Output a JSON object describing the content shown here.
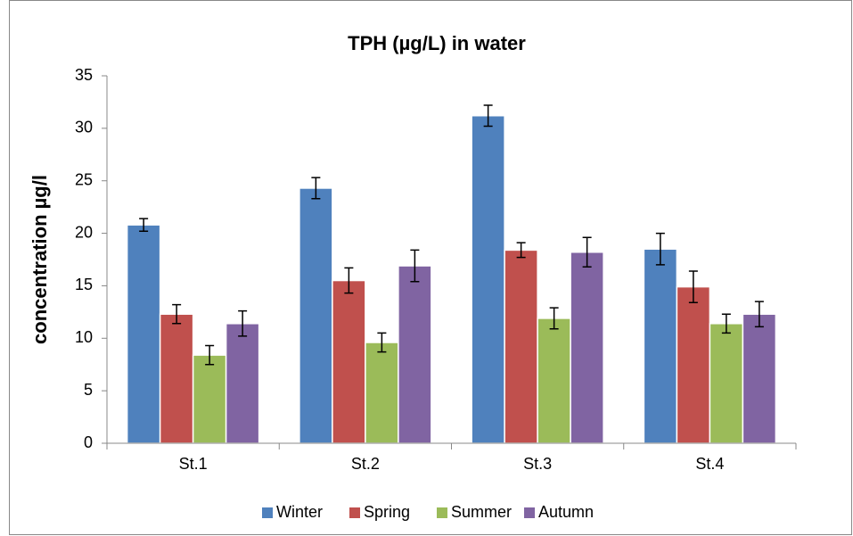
{
  "chart_data": {
    "type": "bar",
    "title": "TPH (µg/L) in water",
    "y_label": "concentration µg/l",
    "categories": [
      "St.1",
      "St.2",
      "St.3",
      "St.4"
    ],
    "series": [
      {
        "name": "Winter",
        "color": "#4f81bd",
        "values": [
          20.8,
          24.3,
          31.2,
          18.5
        ],
        "errors": [
          0.6,
          1.0,
          1.0,
          1.5
        ]
      },
      {
        "name": "Spring",
        "color": "#c0504d",
        "values": [
          12.3,
          15.5,
          18.4,
          14.9
        ],
        "errors": [
          0.9,
          1.2,
          0.7,
          1.5
        ]
      },
      {
        "name": "Summer",
        "color": "#9bbb59",
        "values": [
          8.4,
          9.6,
          11.9,
          11.4
        ],
        "errors": [
          0.9,
          0.9,
          1.0,
          0.9
        ]
      },
      {
        "name": "Autumn",
        "color": "#8064a2",
        "values": [
          11.4,
          16.9,
          18.2,
          12.3
        ],
        "errors": [
          1.2,
          1.5,
          1.4,
          1.2
        ]
      }
    ],
    "ylim": [
      0,
      35
    ],
    "yticks": [
      0,
      5,
      10,
      15,
      20,
      25,
      30,
      35
    ],
    "grid": false,
    "legend": "bottom"
  }
}
